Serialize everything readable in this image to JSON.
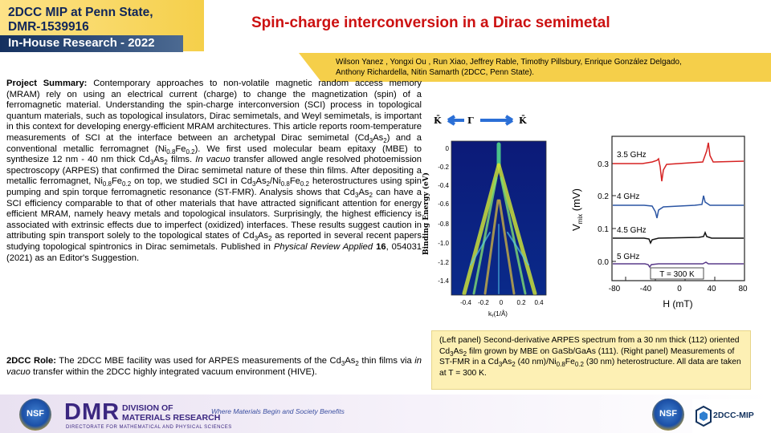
{
  "header": {
    "line1": "2DCC MIP at Penn State,",
    "line2": "DMR-1539916",
    "sub": "In-House Research - 2022"
  },
  "title": "Spin-charge interconversion in a Dirac semimetal",
  "authors": {
    "line1": "Wilson Yanez , Yongxi Ou , Run Xiao, Jeffrey Rable, Timothy Pillsbury, Enrique González Delgado,",
    "line2": "Anthony Richardella, Nitin Samarth (2DCC, Penn State)."
  },
  "summary": {
    "label": "Project Summary:",
    "t1": " Contemporary approaches to non-volatile magnetic random access memory (MRAM) rely on using an electrical current (charge) to change the magnetization (spin) of a ferromagnetic material. Understanding the spin-charge interconversion (SCI) process in topological quantum materials, such as topological insulators, Dirac semimetals, and Weyl semimetals, is important in this context for developing energy-efficient MRAM architectures. This article reports room-temperature measurements of SCI at the interface between an archetypal Dirac semimetal (Cd",
    "s1": "3",
    "t2": "As",
    "s2": "2",
    "t3": ") and a conventional metallic ferromagnet (Ni",
    "s3": "0.8",
    "t4": "Fe",
    "s4": "0.2",
    "t5": "). We first used molecular beam epitaxy (MBE) to synthesize 12 nm - 40 nm thick Cd",
    "s5": "3",
    "t6": "As",
    "s6": "2",
    "t7": " films. ",
    "i1": "In vacuo",
    "t8": " transfer allowed angle resolved photoemission spectroscopy (ARPES) that confirmed the Dirac semimetal nature of these thin films. After depositing a metallic ferromagnet, Ni",
    "s7": "0.8",
    "t9": "Fe",
    "s8": "0.2",
    "t10": " on top, we studied SCI in Cd",
    "s9": "3",
    "t11": "As",
    "s10": "2",
    "t12": "/Ni",
    "s11": "0.8",
    "t13": "Fe",
    "s12": "0.2",
    "t14": " heterostructures using spin pumping and spin torque ferromagnetic resonance (ST-FMR). Analysis shows that Cd",
    "s13": "3",
    "t15": "As",
    "s14": "2",
    "t16": " can have a SCI efficiency comparable to that of other materials that have attracted significant attention for energy efficient MRAM, namely heavy metals and topological insulators. Surprisingly, the highest efficiency is associated with extrinsic effects due to imperfect (oxidized) interfaces. These results suggest caution in attributing spin transport solely to the topological states of Cd",
    "s15": "3",
    "t17": "As",
    "s16": "2",
    "t18": " as reported in several recent papers studying topological spintronics in Dirac semimetals. Published in ",
    "i2": "Physical Review Applied",
    "t19": " ",
    "b1": "16",
    "t20": ", 054031 (2021) as an Editor's Suggestion."
  },
  "role": {
    "label": "2DCC Role:",
    "t1": " The 2DCC MBE facility was used for ARPES measurements of the Cd",
    "s1": "3",
    "t2": "As",
    "s2": "2",
    "t3": " thin films via ",
    "i1": "in vacuo",
    "t4": " transfer within the 2DCC highly integrated vacuum environment  (HIVE)."
  },
  "figure": {
    "arpes": {
      "k_left": "K̄",
      "gamma": "Γ",
      "k_right": "K̄",
      "ylabel": "Binding Energy (eV)",
      "xlabel": "kᵧ(1/Å)",
      "yticks": [
        "0",
        "-0.2",
        "-0.4",
        "-0.6",
        "-0.8",
        "-1.0",
        "-1.2",
        "-1.4"
      ],
      "xticks": [
        "-0.4",
        "-0.2",
        "0",
        "0.2",
        "0.4"
      ]
    },
    "stfmr": {
      "ylabel_main": "V",
      "ylabel_sub": "mix",
      "ylabel_unit": " (mV)",
      "xlabel": "H (mT)",
      "yticks": [
        "0.3",
        "0.2",
        "0.1",
        "0.0"
      ],
      "xticks": [
        "-80",
        "-40",
        "0",
        "40",
        "80"
      ],
      "temp_label": "T = 300 K",
      "series": [
        {
          "name": "3.5 GHz",
          "color": "#d62222"
        },
        {
          "name": "4 GHz",
          "color": "#2b55a3"
        },
        {
          "name": "4.5 GHz",
          "color": "#111111"
        },
        {
          "name": "5 GHz",
          "color": "#5a3b8a"
        }
      ]
    }
  },
  "caption": {
    "t1": "(Left panel) Second-derivative ARPES spectrum from a 30 nm thick (112) oriented Cd",
    "s1": "3",
    "t2": "As",
    "s2": "2",
    "t3": " film grown by MBE on GaSb/GaAs (111).  (Right panel) Measurements of ST-FMR in a Cd",
    "s3": "3",
    "t4": "As",
    "s4": "2",
    "t5": " (40 nm)/Ni",
    "s5": "0.8",
    "t6": "Fe",
    "s6": "0.2",
    "t7": " (30 nm) heterostructure.  All data are taken at T = 300 K."
  },
  "footer": {
    "nsf": "NSF",
    "dmr": "DMR",
    "dmr_t1": "DIVISION OF",
    "dmr_t2": "MATERIALS RESEARCH",
    "dmr_t3": "DIRECTORATE FOR MATHEMATICAL AND PHYSICAL SCIENCES",
    "tagline": "Where Materials Begin and Society Benefits",
    "mip": "2DCC-MIP"
  }
}
